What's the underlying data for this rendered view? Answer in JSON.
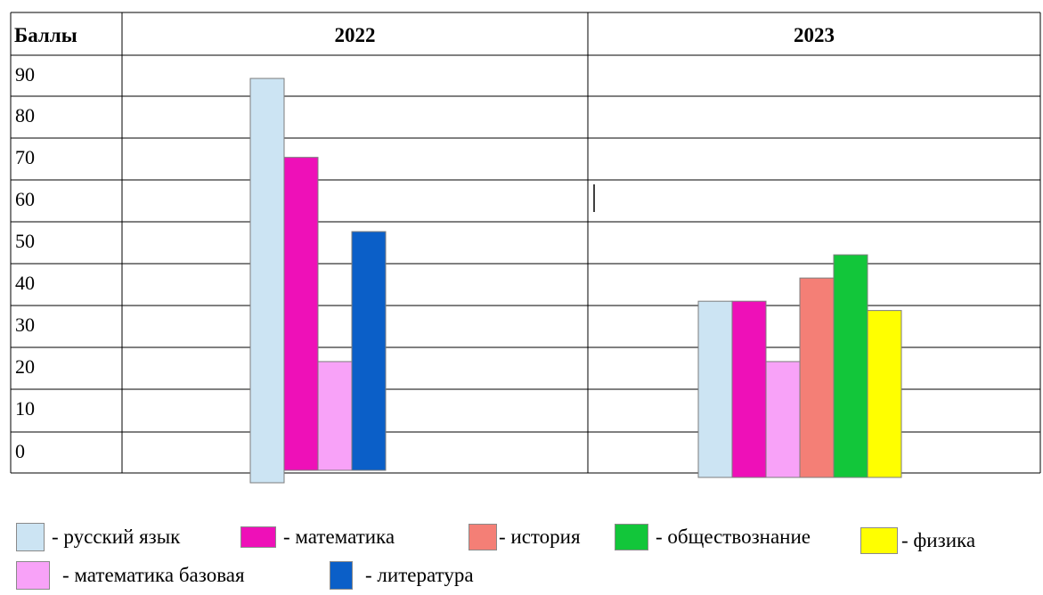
{
  "chart_data": {
    "type": "bar",
    "header": {
      "label": "Баллы",
      "groups": [
        "2022",
        "2023"
      ]
    },
    "y_ticks": [
      "90",
      "80",
      "70",
      "60",
      "50",
      "40",
      "30",
      "20",
      "10",
      "0"
    ],
    "ylim": [
      0,
      90
    ],
    "series": [
      {
        "name": "русский язык",
        "color": "#cce4f3",
        "values": [
          85,
          37
        ]
      },
      {
        "name": "математика",
        "color": "#ee10b8",
        "values": [
          68,
          37
        ]
      },
      {
        "name": "математика базовая",
        "color": "#f8a2f8",
        "values": [
          24,
          24
        ]
      },
      {
        "name": "литература",
        "color": "#0b5fc8",
        "values": [
          52,
          null
        ]
      },
      {
        "name": "история",
        "color": "#f47f76",
        "values": [
          null,
          42
        ]
      },
      {
        "name": "обществознание",
        "color": "#12c63a",
        "values": [
          null,
          47
        ]
      },
      {
        "name": "физика",
        "color": "#ffff00",
        "values": [
          null,
          35
        ]
      }
    ],
    "grid": true
  },
  "legend": {
    "items": [
      {
        "label": "- русский язык",
        "color": "#cce4f3"
      },
      {
        "label": "- математика",
        "color": "#ee10b8"
      },
      {
        "label": "- история",
        "color": "#f47f76"
      },
      {
        "label": "- обществознание",
        "color": "#12c63a"
      },
      {
        "label": "- физика",
        "color": "#ffff00"
      },
      {
        "label": "- математика базовая",
        "color": "#f8a2f8"
      },
      {
        "label": "- литература",
        "color": "#0b5fc8"
      }
    ]
  }
}
